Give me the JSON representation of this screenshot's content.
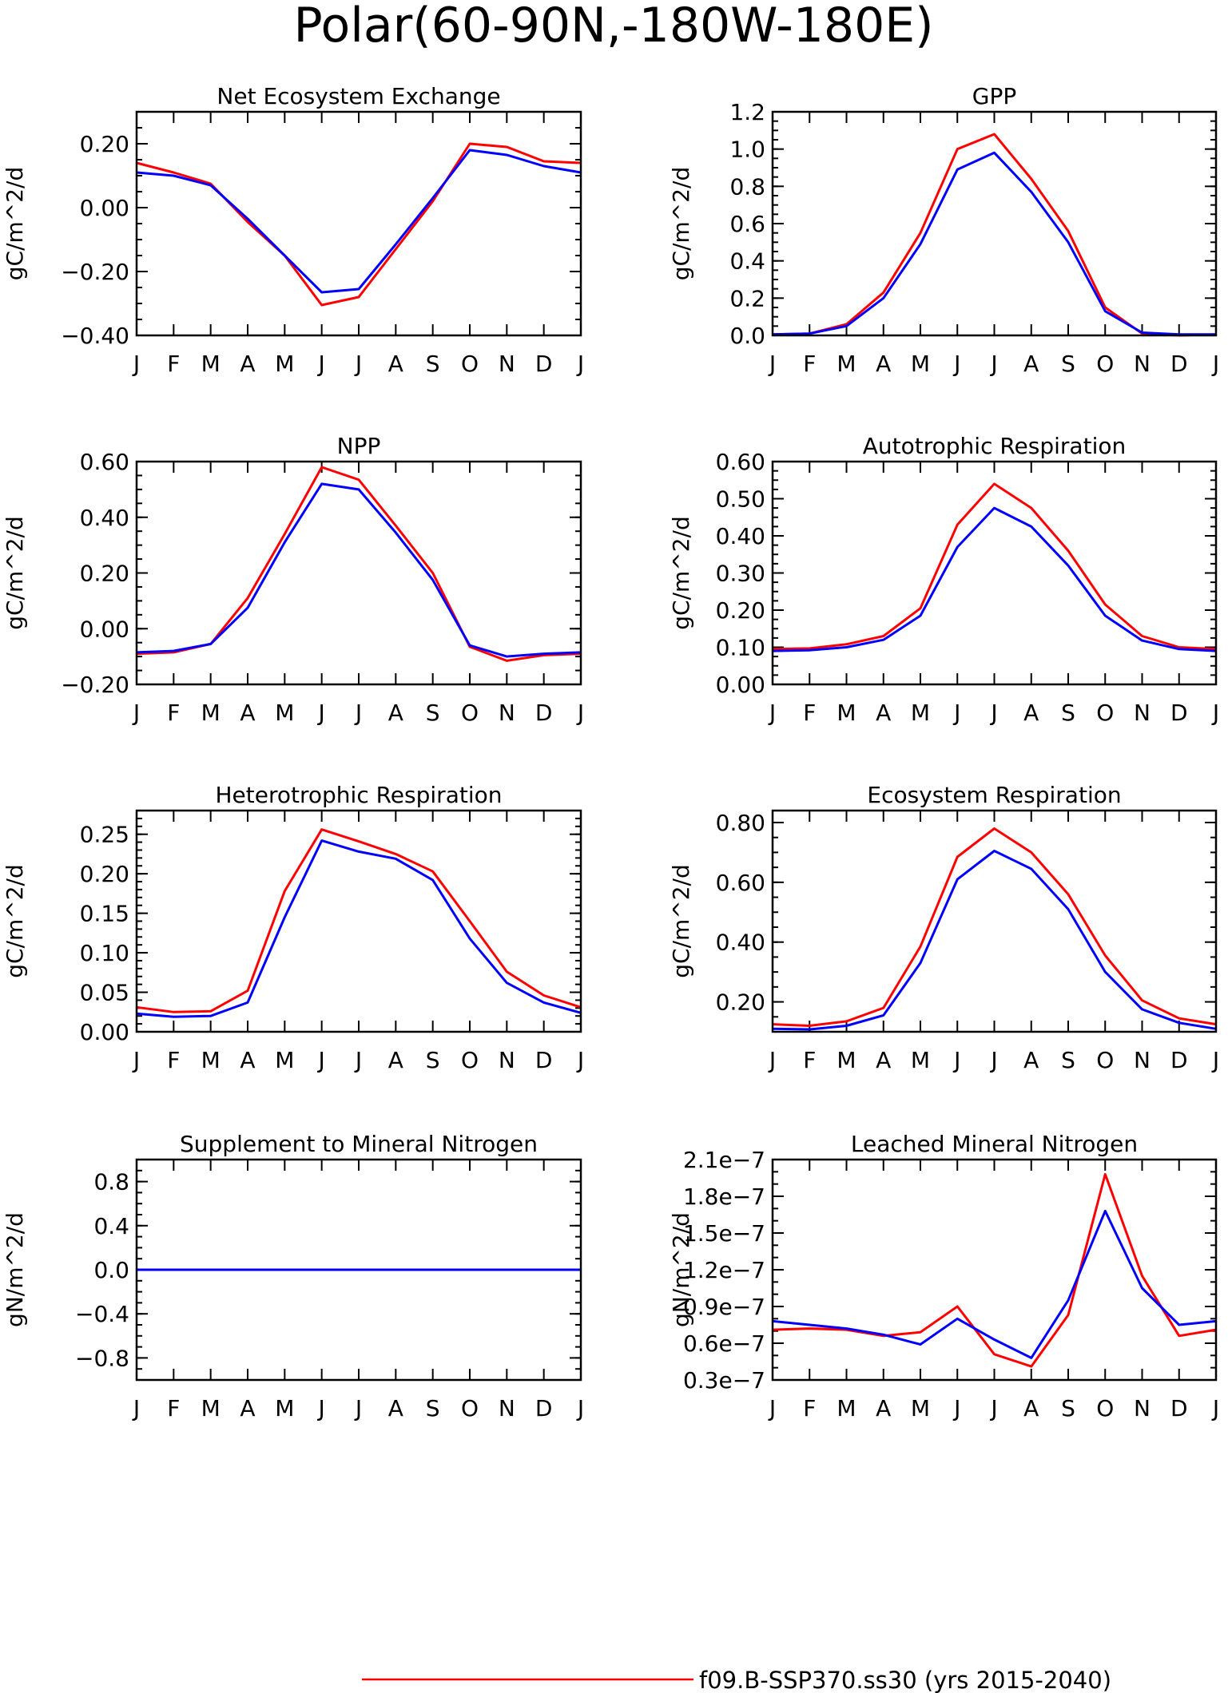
{
  "figure": {
    "title": "Polar(60-90N,-180W-180E)",
    "month_labels": [
      "J",
      "F",
      "M",
      "A",
      "M",
      "J",
      "J",
      "A",
      "S",
      "O",
      "N",
      "D",
      "J"
    ],
    "legend": [
      {
        "label": "f09.B-SSP370.ss30 (yrs 2015-2040)",
        "color": "#ff0000"
      }
    ],
    "colors": {
      "series_a": "#ff0000",
      "series_b": "#0000ff"
    }
  },
  "chart_data": [
    {
      "type": "line",
      "title": "Net Ecosystem Exchange",
      "ylabel": "gC/m^2/d",
      "ylim": [
        -0.4,
        0.3
      ],
      "yticks": [
        -0.4,
        -0.2,
        0.0,
        0.2
      ],
      "ytick_labels": [
        "−0.40",
        "−0.20",
        "0.00",
        "0.20"
      ],
      "yminor_step": 0.05,
      "series": [
        {
          "color": "#ff0000",
          "values": [
            0.14,
            0.11,
            0.075,
            -0.045,
            -0.15,
            -0.305,
            -0.28,
            -0.13,
            0.02,
            0.2,
            0.19,
            0.145,
            0.14
          ]
        },
        {
          "color": "#0000ff",
          "values": [
            0.11,
            0.1,
            0.07,
            -0.035,
            -0.15,
            -0.265,
            -0.255,
            -0.115,
            0.03,
            0.18,
            0.165,
            0.13,
            0.11
          ]
        }
      ]
    },
    {
      "type": "line",
      "title": "GPP",
      "ylabel": "gC/m^2/d",
      "ylim": [
        0.0,
        1.2
      ],
      "yticks": [
        0.0,
        0.2,
        0.4,
        0.6,
        0.8,
        1.0,
        1.2
      ],
      "ytick_labels": [
        "0.0",
        "0.2",
        "0.4",
        "0.6",
        "0.8",
        "1.0",
        "1.2"
      ],
      "yminor_step": 0.05,
      "series": [
        {
          "color": "#ff0000",
          "values": [
            0.005,
            0.01,
            0.06,
            0.23,
            0.55,
            1.0,
            1.08,
            0.84,
            0.56,
            0.15,
            0.01,
            0.0,
            0.005
          ]
        },
        {
          "color": "#0000ff",
          "values": [
            0.005,
            0.01,
            0.05,
            0.2,
            0.49,
            0.89,
            0.98,
            0.77,
            0.5,
            0.13,
            0.015,
            0.005,
            0.005
          ]
        }
      ]
    },
    {
      "type": "line",
      "title": "NPP",
      "ylabel": "gC/m^2/d",
      "ylim": [
        -0.2,
        0.6
      ],
      "yticks": [
        -0.2,
        0.0,
        0.2,
        0.4,
        0.6
      ],
      "ytick_labels": [
        "−0.20",
        "0.00",
        "0.20",
        "0.40",
        "0.60"
      ],
      "yminor_step": 0.05,
      "series": [
        {
          "color": "#ff0000",
          "values": [
            -0.09,
            -0.085,
            -0.055,
            0.11,
            0.34,
            0.58,
            0.535,
            0.37,
            0.2,
            -0.065,
            -0.115,
            -0.095,
            -0.09
          ]
        },
        {
          "color": "#0000ff",
          "values": [
            -0.085,
            -0.08,
            -0.055,
            0.075,
            0.31,
            0.52,
            0.5,
            0.345,
            0.175,
            -0.06,
            -0.1,
            -0.09,
            -0.085
          ]
        }
      ]
    },
    {
      "type": "line",
      "title": "Autotrophic Respiration",
      "ylabel": "gC/m^2/d",
      "ylim": [
        0.0,
        0.6
      ],
      "yticks": [
        0.0,
        0.1,
        0.2,
        0.3,
        0.4,
        0.5,
        0.6
      ],
      "ytick_labels": [
        "0.00",
        "0.10",
        "0.20",
        "0.30",
        "0.40",
        "0.50",
        "0.60"
      ],
      "yminor_step": 0.025,
      "series": [
        {
          "color": "#ff0000",
          "values": [
            0.095,
            0.097,
            0.108,
            0.13,
            0.205,
            0.43,
            0.54,
            0.475,
            0.36,
            0.215,
            0.13,
            0.1,
            0.095
          ]
        },
        {
          "color": "#0000ff",
          "values": [
            0.09,
            0.092,
            0.1,
            0.12,
            0.185,
            0.37,
            0.475,
            0.425,
            0.32,
            0.185,
            0.118,
            0.095,
            0.09
          ]
        }
      ]
    },
    {
      "type": "line",
      "title": "Heterotrophic Respiration",
      "ylabel": "gC/m^2/d",
      "ylim": [
        0.0,
        0.28
      ],
      "yticks": [
        0.0,
        0.05,
        0.1,
        0.15,
        0.2,
        0.25
      ],
      "ytick_labels": [
        "0.00",
        "0.05",
        "0.10",
        "0.15",
        "0.20",
        "0.25"
      ],
      "yminor_step": 0.01,
      "series": [
        {
          "color": "#ff0000",
          "values": [
            0.031,
            0.025,
            0.026,
            0.052,
            0.178,
            0.256,
            0.241,
            0.225,
            0.203,
            0.14,
            0.076,
            0.046,
            0.031
          ]
        },
        {
          "color": "#0000ff",
          "values": [
            0.023,
            0.019,
            0.02,
            0.037,
            0.145,
            0.242,
            0.228,
            0.219,
            0.192,
            0.118,
            0.062,
            0.037,
            0.024
          ]
        }
      ]
    },
    {
      "type": "line",
      "title": "Ecosystem Respiration",
      "ylabel": "gC/m^2/d",
      "ylim": [
        0.1,
        0.84
      ],
      "yticks": [
        0.2,
        0.4,
        0.6,
        0.8
      ],
      "ytick_labels": [
        "0.20",
        "0.40",
        "0.60",
        "0.80"
      ],
      "yminor_step": 0.05,
      "series": [
        {
          "color": "#ff0000",
          "values": [
            0.125,
            0.12,
            0.135,
            0.18,
            0.385,
            0.685,
            0.78,
            0.7,
            0.56,
            0.355,
            0.205,
            0.145,
            0.125
          ]
        },
        {
          "color": "#0000ff",
          "values": [
            0.11,
            0.108,
            0.12,
            0.155,
            0.33,
            0.61,
            0.705,
            0.645,
            0.51,
            0.3,
            0.175,
            0.13,
            0.11
          ]
        }
      ]
    },
    {
      "type": "line",
      "title": "Supplement to Mineral Nitrogen",
      "ylabel": "gN/m^2/d",
      "ylim": [
        -1.0,
        1.0
      ],
      "yticks": [
        -0.8,
        -0.4,
        0.0,
        0.4,
        0.8
      ],
      "ytick_labels": [
        "−0.8",
        "−0.4",
        "0.0",
        "0.4",
        "0.8"
      ],
      "yminor_step": 0.1,
      "series": [
        {
          "color": "#ff0000",
          "values": [
            0,
            0,
            0,
            0,
            0,
            0,
            0,
            0,
            0,
            0,
            0,
            0,
            0
          ]
        },
        {
          "color": "#0000ff",
          "values": [
            0,
            0,
            0,
            0,
            0,
            0,
            0,
            0,
            0,
            0,
            0,
            0,
            0
          ]
        }
      ]
    },
    {
      "type": "line",
      "title": "Leached Mineral Nitrogen",
      "ylabel": "gN/m^2/d",
      "ylim": [
        3e-08,
        2.1e-07
      ],
      "yticks": [
        3e-08,
        6e-08,
        9e-08,
        1.2e-07,
        1.5e-07,
        1.8e-07,
        2.1e-07
      ],
      "ytick_labels": [
        "0.3e−7",
        "0.6e−7",
        "0.9e−7",
        "1.2e−7",
        "1.5e−7",
        "1.8e−7",
        "2.1e−7"
      ],
      "yminor_step": 1e-08,
      "series": [
        {
          "color": "#ff0000",
          "values": [
            7.1e-08,
            7.2e-08,
            7.1e-08,
            6.6e-08,
            6.9e-08,
            9e-08,
            5.1e-08,
            4.1e-08,
            8.3e-08,
            1.98e-07,
            1.15e-07,
            6.6e-08,
            7.1e-08
          ]
        },
        {
          "color": "#0000ff",
          "values": [
            7.8e-08,
            7.5e-08,
            7.2e-08,
            6.7e-08,
            5.9e-08,
            8e-08,
            6.3e-08,
            4.8e-08,
            9.5e-08,
            1.68e-07,
            1.05e-07,
            7.5e-08,
            7.8e-08
          ]
        }
      ]
    }
  ]
}
